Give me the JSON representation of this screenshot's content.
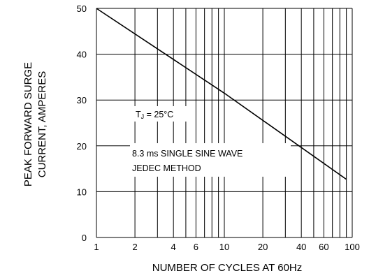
{
  "chart_data": {
    "type": "line",
    "title": "",
    "xlabel": "NUMBER OF CYCLES AT 60Hz",
    "ylabel": [
      "PEAK FORWARD SURGE",
      "CURRENT, AMPERES"
    ],
    "x_scale": "log",
    "xlim": [
      1,
      100
    ],
    "ylim": [
      0,
      50
    ],
    "x_ticks": [
      1,
      2,
      4,
      6,
      10,
      20,
      40,
      60,
      100
    ],
    "x_tick_labels": [
      "1",
      "2",
      "4",
      "6",
      "10",
      "20",
      "40",
      "60",
      "100"
    ],
    "y_ticks": [
      0,
      10,
      20,
      30,
      40,
      50
    ],
    "y_tick_labels": [
      "0",
      "10",
      "20",
      "30",
      "40",
      "50"
    ],
    "x_gridlines": [
      1,
      2,
      3,
      4,
      5,
      6,
      7,
      8,
      9,
      10,
      20,
      30,
      40,
      50,
      60,
      70,
      80,
      90,
      100
    ],
    "y_gridlines": [
      10,
      20,
      30,
      40,
      50
    ],
    "grid": true,
    "series": [
      {
        "x": [
          1,
          10,
          90
        ],
        "y": [
          50,
          31.5,
          12.7
        ]
      }
    ],
    "annotations": {
      "temp_main": "T",
      "temp_sub": "J",
      "temp_rest": " = 25°C",
      "method_line1": "8.3 ms SINGLE SINE WAVE",
      "method_line2": "JEDEC METHOD"
    }
  }
}
